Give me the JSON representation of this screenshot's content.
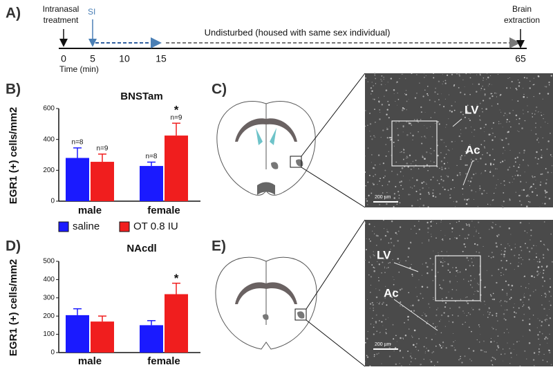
{
  "panel_labels": [
    "A)",
    "B)",
    "C)",
    "D)",
    "E)"
  ],
  "timeline": {
    "events": [
      {
        "label": [
          "Intranasal",
          "treatment"
        ]
      },
      {
        "label": [
          "SI"
        ]
      },
      {
        "label": [
          "Brain",
          "extraction"
        ]
      }
    ],
    "phase_label": "Undisturbed (housed with same sex individual)",
    "ticks": [
      0,
      5,
      10,
      15,
      65
    ],
    "axis_label": "Time (min)"
  },
  "images": [
    {
      "labels": [
        "LV",
        "Ac"
      ],
      "scale_bar": "200 µm"
    },
    {
      "labels": [
        "LV",
        "Ac"
      ],
      "scale_bar": "200 µm"
    }
  ],
  "chart_data": [
    {
      "type": "bar",
      "title": "BNSTam",
      "y_label": "EGR1 (+) cells/mm2",
      "categories": [
        "male",
        "female"
      ],
      "series": [
        {
          "name": "saline",
          "color": "#1a1aff",
          "values": [
            280,
            228
          ],
          "errors": [
            65,
            25
          ],
          "n_labels": [
            "n=8",
            "n=8"
          ],
          "significance": [
            null,
            null
          ]
        },
        {
          "name": "OT 0.8 IU",
          "color": "#f01e1e",
          "values": [
            255,
            425
          ],
          "errors": [
            50,
            80
          ],
          "n_labels": [
            "n=9",
            "n=9"
          ],
          "significance": [
            null,
            "*"
          ]
        }
      ],
      "ylim": [
        0,
        600
      ],
      "yticks": [
        0,
        200,
        400,
        600
      ]
    },
    {
      "type": "bar",
      "title": "NAcdl",
      "y_label": "EGR1 (+) cells/mm2",
      "categories": [
        "male",
        "female"
      ],
      "series": [
        {
          "color": "#1a1aff",
          "values": [
            205,
            150
          ],
          "errors": [
            35,
            25
          ],
          "significance": [
            null,
            null
          ]
        },
        {
          "color": "#f01e1e",
          "values": [
            170,
            320
          ],
          "errors": [
            30,
            60
          ],
          "significance": [
            null,
            "*"
          ]
        }
      ],
      "ylim": [
        0,
        500
      ],
      "yticks": [
        0,
        100,
        200,
        300,
        400,
        500
      ]
    }
  ]
}
